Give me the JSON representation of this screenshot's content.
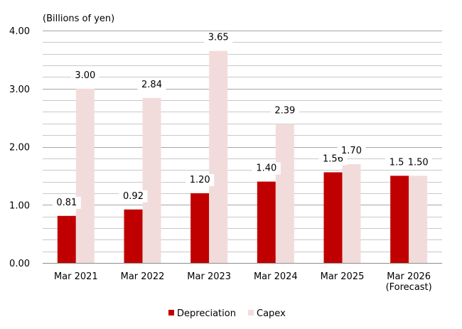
{
  "chart_data": {
    "type": "bar",
    "unit_label": "(Billions of yen)",
    "categories": [
      [
        "Mar 2021"
      ],
      [
        "Mar 2022"
      ],
      [
        "Mar 2023"
      ],
      [
        "Mar 2024"
      ],
      [
        "Mar 2025"
      ],
      [
        "Mar 2026",
        "(Forecast)"
      ]
    ],
    "series": [
      {
        "name": "Depreciation",
        "color": "#c00000",
        "values": [
          0.81,
          0.92,
          1.2,
          1.4,
          1.56,
          1.5
        ],
        "labels": [
          "0.81",
          "0.92",
          "1.20",
          "1.40",
          "1.56",
          "1.50"
        ]
      },
      {
        "name": "Capex",
        "color": "#f2dcdb",
        "values": [
          3.0,
          2.84,
          3.65,
          2.39,
          1.7,
          1.5
        ],
        "labels": [
          "3.00",
          "2.84",
          "3.65",
          "2.39",
          "1.70",
          "1.50"
        ]
      }
    ],
    "ylim": [
      0,
      4
    ],
    "y_ticks": [
      "0.00",
      "1.00",
      "2.00",
      "3.00",
      "4.00"
    ],
    "y_tick_values": [
      0,
      1,
      2,
      3,
      4
    ],
    "minor_gridline_step": 0.2,
    "grid": true,
    "legend_position": "bottom-center"
  }
}
